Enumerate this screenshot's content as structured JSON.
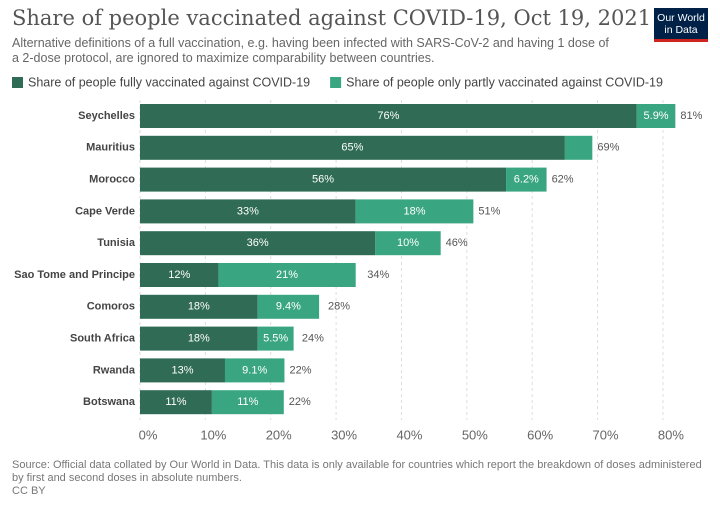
{
  "chart_data": {
    "type": "stacked-bar-horizontal",
    "title": "Share of people vaccinated against COVID-19, Oct 19, 2021",
    "subtitle": "Alternative definitions of a full vaccination, e.g. having been infected with SARS-CoV-2 and having 1 dose of a 2-dose protocol, are ignored to maximize comparability between countries.",
    "logo": "Our World in Data",
    "categories": [
      "Seychelles",
      "Mauritius",
      "Morocco",
      "Cape Verde",
      "Tunisia",
      "Sao Tome and Principe",
      "Comoros",
      "South Africa",
      "Rwanda",
      "Botswana"
    ],
    "series": [
      {
        "name": "Share of people fully vaccinated against COVID-19",
        "color": "#2f6b55",
        "values": [
          76,
          65,
          56,
          33,
          36,
          12,
          18,
          18,
          13,
          11
        ],
        "value_labels": [
          "76%",
          "65%",
          "56%",
          "33%",
          "36%",
          "12%",
          "18%",
          "18%",
          "13%",
          "11%"
        ]
      },
      {
        "name": "Share of people only partly vaccinated against COVID-19",
        "color": "#3aa681",
        "values": [
          5.9,
          4.2,
          6.2,
          18,
          10,
          21,
          9.4,
          5.5,
          9.1,
          11
        ],
        "value_labels": [
          "5.9%",
          null,
          "6.2%",
          "18%",
          "10%",
          "21%",
          "9.4%",
          "5.5%",
          "9.1%",
          "11%"
        ]
      }
    ],
    "totals": [
      81,
      69,
      62,
      51,
      46,
      34,
      28,
      24,
      22,
      22
    ],
    "total_labels": [
      "81%",
      "69%",
      "62%",
      "51%",
      "46%",
      "34%",
      "28%",
      "24%",
      "22%",
      "22%"
    ],
    "xlim": [
      0,
      82
    ],
    "xticks": [
      {
        "value": 0,
        "label": "0%"
      },
      {
        "value": 10,
        "label": "10%"
      },
      {
        "value": 20,
        "label": "20%"
      },
      {
        "value": 30,
        "label": "30%"
      },
      {
        "value": 40,
        "label": "40%"
      },
      {
        "value": 50,
        "label": "50%"
      },
      {
        "value": 60,
        "label": "60%"
      },
      {
        "value": 70,
        "label": "70%"
      },
      {
        "value": 80,
        "label": "80%"
      }
    ],
    "grid": true,
    "source": "Source: Official data collated by Our World in Data. This data is only available for countries which report the breakdown of doses administered by first and second doses in absolute numbers.",
    "license": "CC BY"
  }
}
